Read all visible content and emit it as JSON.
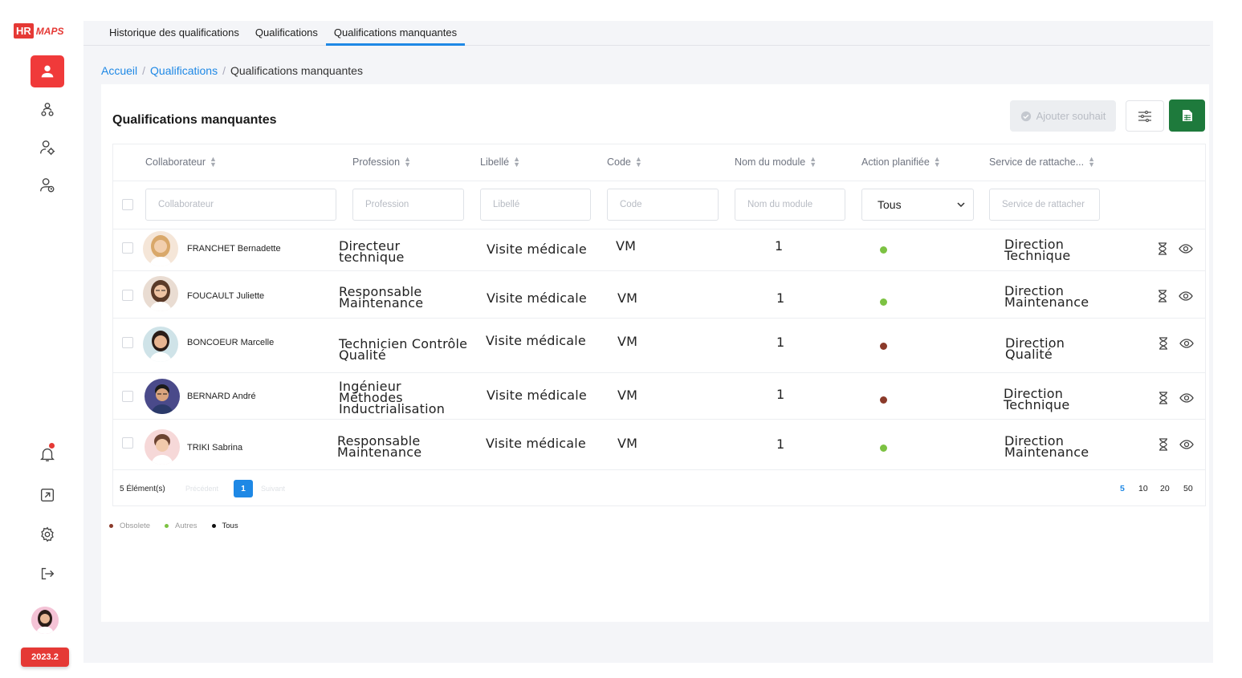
{
  "brand": {
    "hr": "HR",
    "maps": "MAPS",
    "version": "2023.2"
  },
  "sidebar": {
    "items": [
      {
        "icon": "user-icon",
        "active": true
      },
      {
        "icon": "users-hierarchy-icon",
        "active": false
      },
      {
        "icon": "user-settings-icon",
        "active": false
      },
      {
        "icon": "user-clock-icon",
        "active": false
      }
    ],
    "bottom": [
      "bell-icon",
      "external-link-icon",
      "gear-icon",
      "logout-icon"
    ]
  },
  "tabs": [
    {
      "label": "Historique des qualifications",
      "active": false
    },
    {
      "label": "Qualifications",
      "active": false
    },
    {
      "label": "Qualifications manquantes",
      "active": true
    }
  ],
  "breadcrumb": {
    "home": "Accueil",
    "section": "Qualifications",
    "current": "Qualifications manquantes"
  },
  "page": {
    "title": "Qualifications manquantes",
    "add_button": "Ajouter souhait"
  },
  "table": {
    "columns": [
      "Collaborateur",
      "Profession",
      "Libellé",
      "Code",
      "Nom du module",
      "Action planifiée",
      "Service de rattache..."
    ],
    "filters": {
      "collaborateur": "Collaborateur",
      "profession": "Profession",
      "libelle": "Libellé",
      "code": "Code",
      "module": "Nom du module",
      "action": "Tous",
      "service": "Service de rattacher"
    },
    "rows": [
      {
        "name": "FRANCHET Bernadette",
        "profession_1": "Directeur",
        "profession_2": "technique",
        "profession_3": "",
        "libelle": "Visite médicale",
        "code": "VM",
        "module": "1",
        "status": "autres",
        "service_1": "Direction",
        "service_2": "Technique"
      },
      {
        "name": "FOUCAULT Juliette",
        "profession_1": "Responsable",
        "profession_2": "Maintenance",
        "profession_3": "",
        "libelle": "Visite médicale",
        "code": "VM",
        "module": "1",
        "status": "autres",
        "service_1": "Direction",
        "service_2": "Maintenance"
      },
      {
        "name": "BONCOEUR Marcelle",
        "profession_1": "Technicien Contrôle",
        "profession_2": "Qualité",
        "profession_3": "",
        "libelle": "Visite médicale",
        "code": "VM",
        "module": "1",
        "status": "obsolete",
        "service_1": "Direction",
        "service_2": "Qualité"
      },
      {
        "name": "BERNARD André",
        "profession_1": "Ingénieur",
        "profession_2": "Méthodes",
        "profession_3": "Inductrialisation",
        "libelle": "Visite médicale",
        "code": "VM",
        "module": "1",
        "status": "obsolete",
        "service_1": "Direction",
        "service_2": "Technique"
      },
      {
        "name": "TRIKI Sabrina",
        "profession_1": "Responsable",
        "profession_2": "Maintenance",
        "profession_3": "",
        "libelle": "Visite médicale",
        "code": "VM",
        "module": "1",
        "status": "autres",
        "service_1": "Direction",
        "service_2": "Maintenance"
      }
    ],
    "footer": {
      "count": "5 Élément(s)",
      "prev": "Précédent",
      "page": "1",
      "next": "Suivant",
      "sizes": [
        "5",
        "10",
        "20",
        "50"
      ]
    }
  },
  "legend": {
    "obsolete": "Obsolete",
    "autres": "Autres",
    "tous": "Tous"
  },
  "colors": {
    "accent": "#1e88e5",
    "brand": "#e53935",
    "green": "#7cc242",
    "obsolete": "#8b3a2a",
    "excel": "#1e7a3c"
  }
}
